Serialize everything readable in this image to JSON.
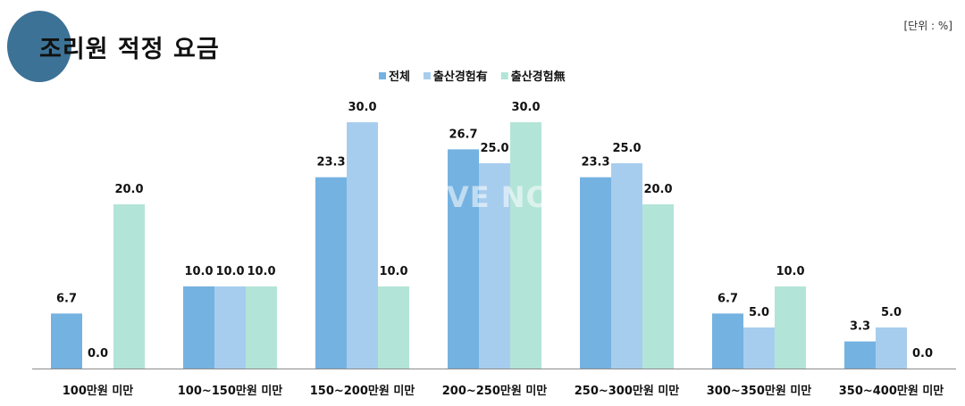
{
  "header": {
    "title": "조리원 적정 요금",
    "unit": "[단위 : %]"
  },
  "watermark": "VE NO",
  "colors": {
    "title_circle": "#3c7296",
    "series": [
      "#74b2e1",
      "#a7cdee",
      "#b3e4d8"
    ]
  },
  "chart_data": {
    "type": "bar",
    "title": "조리원 적정 요금",
    "unit": "[단위 : %]",
    "categories": [
      "100만원 미만",
      "100~150만원 미만",
      "150~200만원 미만",
      "200~250만원 미만",
      "250~300만원 미만",
      "300~350만원 미만",
      "350~400만원 미만"
    ],
    "series": [
      {
        "name": "전체",
        "values": [
          6.7,
          10.0,
          23.3,
          26.7,
          23.3,
          6.7,
          3.3
        ]
      },
      {
        "name": "출산경험有",
        "values": [
          0.0,
          10.0,
          30.0,
          25.0,
          25.0,
          5.0,
          5.0
        ]
      },
      {
        "name": "출산경험無",
        "values": [
          20.0,
          10.0,
          10.0,
          30.0,
          20.0,
          10.0,
          0.0
        ]
      }
    ],
    "ylim": [
      0,
      30
    ],
    "grid": false,
    "legend": "top-center",
    "data_labels": true
  }
}
